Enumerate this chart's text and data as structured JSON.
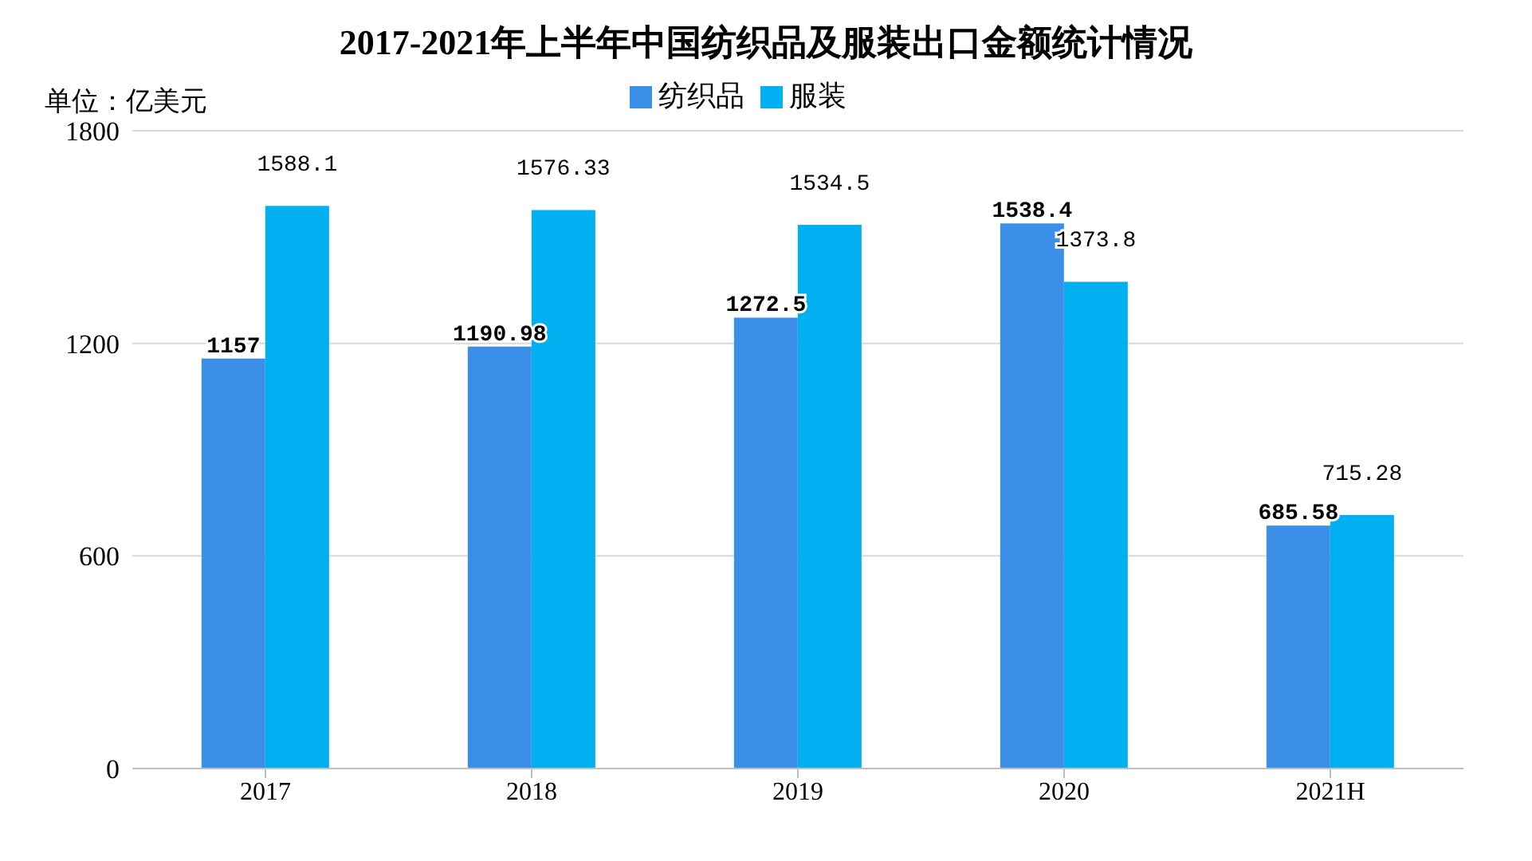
{
  "chart_data": {
    "type": "bar",
    "title": "2017-2021年上半年中国纺织品及服装出口金额统计情况",
    "annotations": [
      "单位：亿美元"
    ],
    "categories": [
      "2017",
      "2018",
      "2019",
      "2020",
      "2021H"
    ],
    "series": [
      {
        "name": "纺织品",
        "color": "#3c8fe8",
        "values": [
          1157,
          1190.98,
          1272.5,
          1538.4,
          685.58
        ]
      },
      {
        "name": "服装",
        "color": "#00b0f0",
        "values": [
          1588.1,
          1576.33,
          1534.5,
          1373.8,
          715.28
        ]
      }
    ],
    "ylim": [
      0,
      1800
    ],
    "yticks": [
      0,
      600,
      1200,
      1800
    ],
    "grid": "y",
    "legend": "top",
    "data_labels": true
  }
}
